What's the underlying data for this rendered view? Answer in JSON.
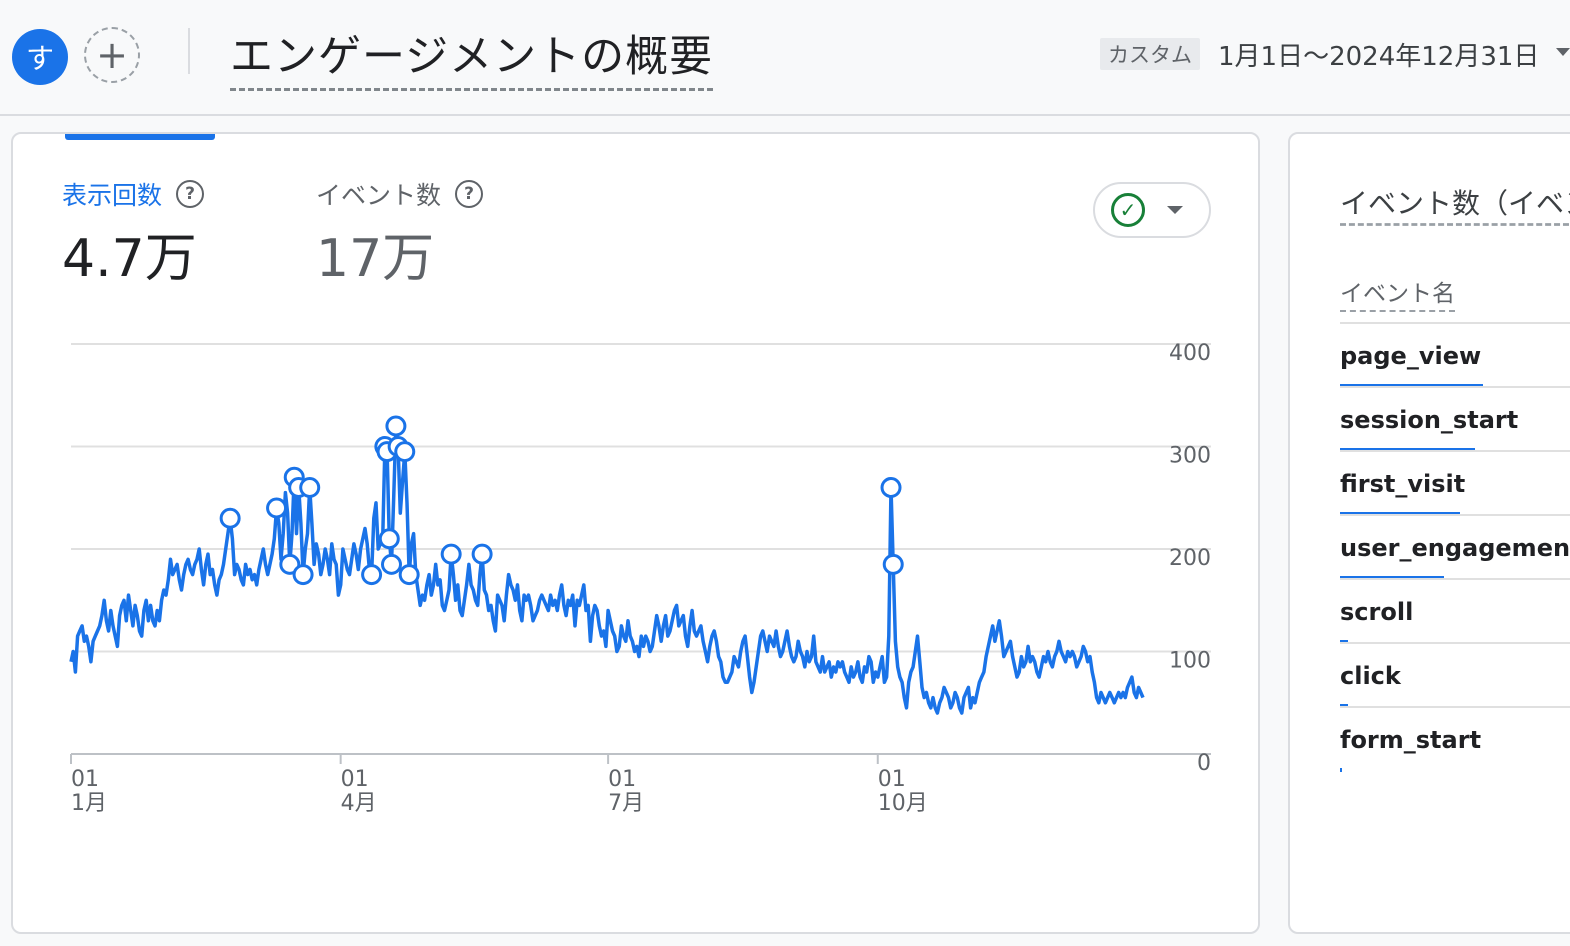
{
  "header": {
    "avatar_letter": "す",
    "add_label": "+",
    "title": "エンゲージメントの概要",
    "date_chip": "カスタム",
    "date_range": "1月1日～2024年12月31日"
  },
  "metrics": [
    {
      "label": "表示回数",
      "value": "4.7万"
    },
    {
      "label": "イベント数",
      "value": "17万"
    }
  ],
  "chart_data": {
    "type": "line",
    "x_axis": {
      "ticks": [
        {
          "top": "01",
          "bottom": "1月"
        },
        {
          "top": "01",
          "bottom": "4月"
        },
        {
          "top": "01",
          "bottom": "7月"
        },
        {
          "top": "01",
          "bottom": "10月"
        }
      ]
    },
    "y_axis": {
      "ticks": [
        "400",
        "300",
        "200",
        "100",
        "0"
      ],
      "range": [
        0,
        400
      ],
      "position": "right"
    },
    "grid": true,
    "series": [
      {
        "color": "#1a73e8",
        "values": [
          90,
          100,
          80,
          115,
          120,
          125,
          110,
          115,
          105,
          90,
          110,
          115,
          120,
          125,
          135,
          150,
          130,
          120,
          140,
          125,
          115,
          105,
          135,
          145,
          150,
          130,
          155,
          140,
          125,
          145,
          135,
          120,
          115,
          140,
          150,
          130,
          145,
          130,
          125,
          140,
          130,
          150,
          160,
          155,
          170,
          190,
          175,
          180,
          185,
          170,
          160,
          175,
          185,
          190,
          180,
          175,
          185,
          190,
          200,
          180,
          165,
          185,
          195,
          175,
          180,
          165,
          155,
          170,
          175,
          185,
          200,
          215,
          230,
          210,
          175,
          185,
          180,
          170,
          165,
          185,
          175,
          180,
          170,
          175,
          165,
          180,
          190,
          200,
          185,
          175,
          185,
          195,
          210,
          240,
          225,
          190,
          215,
          255,
          235,
          185,
          215,
          270,
          215,
          260,
          225,
          175,
          200,
          215,
          260,
          225,
          185,
          205,
          195,
          175,
          185,
          200,
          190,
          175,
          205,
          190,
          185,
          155,
          165,
          200,
          190,
          180,
          175,
          190,
          205,
          195,
          180,
          200,
          210,
          220,
          205,
          180,
          175,
          230,
          245,
          200,
          205,
          210,
          300,
          295,
          210,
          185,
          250,
          320,
          300,
          235,
          265,
          295,
          245,
          175,
          205,
          215,
          175,
          160,
          145,
          155,
          150,
          165,
          175,
          155,
          165,
          185,
          165,
          170,
          145,
          140,
          150,
          160,
          195,
          175,
          150,
          165,
          140,
          135,
          150,
          165,
          185,
          165,
          160,
          150,
          145,
          175,
          195,
          160,
          155,
          140,
          145,
          130,
          120,
          155,
          150,
          145,
          130,
          155,
          175,
          165,
          160,
          150,
          165,
          140,
          130,
          155,
          150,
          155,
          145,
          130,
          135,
          140,
          150,
          155,
          150,
          145,
          140,
          155,
          145,
          150,
          140,
          155,
          165,
          145,
          135,
          150,
          145,
          155,
          125,
          150,
          145,
          155,
          165,
          140,
          145,
          110,
          135,
          145,
          140,
          125,
          115,
          120,
          105,
          140,
          130,
          120,
          115,
          100,
          105,
          125,
          115,
          110,
          130,
          115,
          110,
          100,
          105,
          95,
          115,
          105,
          115,
          110,
          100,
          105,
          120,
          135,
          125,
          110,
          125,
          135,
          115,
          120,
          130,
          140,
          145,
          125,
          130,
          135,
          115,
          105,
          125,
          140,
          120,
          115,
          120,
          125,
          110,
          100,
          90,
          105,
          115,
          120,
          110,
          95,
          90,
          75,
          70,
          70,
          75,
          80,
          95,
          90,
          85,
          100,
          110,
          115,
          95,
          75,
          60,
          70,
          85,
          100,
          115,
          120,
          110,
          100,
          115,
          110,
          105,
          120,
          105,
          95,
          100,
          110,
          120,
          105,
          95,
          90,
          95,
          110,
          100,
          95,
          85,
          100,
          90,
          95,
          115,
          90,
          85,
          80,
          95,
          80,
          85,
          90,
          75,
          85,
          80,
          90,
          85,
          90,
          80,
          75,
          70,
          85,
          75,
          80,
          90,
          75,
          70,
          85,
          80,
          95,
          90,
          70,
          80,
          75,
          85,
          95,
          70,
          75,
          115,
          260,
          185,
          110,
          85,
          75,
          70,
          55,
          45,
          70,
          80,
          85,
          100,
          115,
          90,
          65,
          55,
          60,
          50,
          45,
          55,
          45,
          40,
          50,
          55,
          65,
          60,
          55,
          45,
          50,
          60,
          55,
          45,
          40,
          55,
          60,
          65,
          45,
          55,
          50,
          60,
          70,
          75,
          80,
          95,
          105,
          115,
          125,
          110,
          120,
          130,
          115,
          95,
          100,
          105,
          110,
          95,
          85,
          75,
          80,
          95,
          85,
          90,
          105,
          90,
          95,
          90,
          80,
          75,
          85,
          95,
          90,
          100,
          90,
          85,
          95,
          100,
          110,
          100,
          95,
          90,
          100,
          95,
          100,
          95,
          85,
          90,
          95,
          105,
          100,
          90,
          95,
          80,
          70,
          55,
          50,
          60,
          55,
          50,
          55,
          60,
          55,
          50,
          55,
          60,
          55,
          60,
          55,
          65,
          70,
          75,
          60,
          55,
          65,
          60,
          55
        ]
      }
    ]
  },
  "side_panel": {
    "title": "イベント数（イベント名）",
    "column_header": "イベント名",
    "rows": [
      {
        "name": "page_view",
        "share": 0.55
      },
      {
        "name": "session_start",
        "share": 0.52
      },
      {
        "name": "first_visit",
        "share": 0.46
      },
      {
        "name": "user_engagement",
        "share": 0.4
      },
      {
        "name": "scroll",
        "share": 0.03
      },
      {
        "name": "click",
        "share": 0.03
      },
      {
        "name": "form_start",
        "share": 0.005
      }
    ]
  }
}
